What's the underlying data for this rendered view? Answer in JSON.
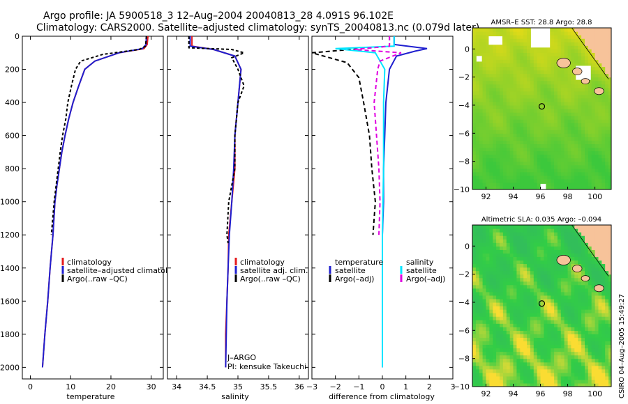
{
  "figure": {
    "title_line1": "Argo profile: JA 5900518_3 12–Aug–2004 20040813_28 4.091S 96.102E",
    "title_line2": "Climatology: CARS2000. Satellite–adjusted climatology: synTS_20040813.nc (0.079d later)",
    "side_note": "CSIRO 04–Aug–2005 15:49:27"
  },
  "colors": {
    "climatology": "#e41a1c",
    "satellite": "#1f1fcf",
    "argo": "#000000",
    "salinity_clim": "#00e5ff",
    "salinity_argo": "#e000e0",
    "ocean_green": "#39c43a",
    "land": "#f7c39a"
  },
  "chart_data": [
    {
      "id": "temperature",
      "type": "line",
      "xlabel": "temperature",
      "ylabel": "",
      "xlim": [
        -2,
        33
      ],
      "ylim": [
        2070,
        0
      ],
      "y_inverted": true,
      "xticks": [
        0,
        10,
        20,
        30
      ],
      "yticks": [
        0,
        200,
        400,
        600,
        800,
        1000,
        1200,
        1400,
        1600,
        1800,
        2000
      ],
      "legend": [
        "climatology",
        "satellite–adjusted climatology",
        "Argo(..raw –QC)"
      ],
      "series": [
        {
          "name": "climatology",
          "color": "#e41a1c",
          "dash": "",
          "points": [
            [
              29.2,
              0
            ],
            [
              29.0,
              50
            ],
            [
              28.2,
              75
            ],
            [
              22,
              100
            ],
            [
              16,
              150
            ],
            [
              13.5,
              200
            ],
            [
              12.0,
              300
            ],
            [
              10.6,
              400
            ],
            [
              9.5,
              500
            ],
            [
              8.6,
              600
            ],
            [
              7.8,
              700
            ],
            [
              7.2,
              800
            ],
            [
              6.6,
              900
            ],
            [
              6.1,
              1000
            ],
            [
              5.6,
              1200
            ],
            [
              4.9,
              1400
            ],
            [
              4.3,
              1600
            ],
            [
              3.6,
              1800
            ],
            [
              3.0,
              2000
            ]
          ]
        },
        {
          "name": "satellite–adjusted climatology",
          "color": "#1f1fcf",
          "dash": "",
          "points": [
            [
              28.8,
              0
            ],
            [
              28.7,
              50
            ],
            [
              27.8,
              75
            ],
            [
              22,
              100
            ],
            [
              16,
              150
            ],
            [
              13.5,
              200
            ],
            [
              12.0,
              300
            ],
            [
              10.6,
              400
            ],
            [
              9.5,
              500
            ],
            [
              8.6,
              600
            ],
            [
              7.8,
              700
            ],
            [
              7.2,
              800
            ],
            [
              6.6,
              900
            ],
            [
              6.1,
              1000
            ],
            [
              5.6,
              1200
            ],
            [
              4.9,
              1400
            ],
            [
              4.3,
              1600
            ],
            [
              3.6,
              1800
            ],
            [
              3.0,
              2000
            ]
          ]
        },
        {
          "name": "Argo(..raw –QC)",
          "color": "#000000",
          "dash": "4,3",
          "points": [
            [
              28.8,
              0
            ],
            [
              28.6,
              60
            ],
            [
              27,
              80
            ],
            [
              18,
              110
            ],
            [
              12.5,
              150
            ],
            [
              11.2,
              200
            ],
            [
              10.2,
              300
            ],
            [
              9.3,
              400
            ],
            [
              8.8,
              500
            ],
            [
              8.0,
              600
            ],
            [
              7.4,
              700
            ],
            [
              6.9,
              800
            ],
            [
              6.4,
              900
            ],
            [
              5.9,
              1000
            ],
            [
              5.2,
              1200
            ]
          ]
        }
      ]
    },
    {
      "id": "salinity",
      "type": "line",
      "xlabel": "salinity",
      "ylabel": "",
      "xlim": [
        33.85,
        36.15
      ],
      "ylim": [
        2070,
        0
      ],
      "y_inverted": true,
      "xticks": [
        34,
        34.5,
        35,
        35.5,
        36
      ],
      "legend": [
        "climatology",
        "satellite adj. clim.",
        "Argo(..raw –QC)"
      ],
      "annotations": [
        "J–ARGO",
        "PI: kensuke Takeuchi"
      ],
      "series": [
        {
          "name": "climatology",
          "color": "#e41a1c",
          "dash": "",
          "points": [
            [
              34.25,
              0
            ],
            [
              34.25,
              60
            ],
            [
              34.6,
              80
            ],
            [
              34.95,
              120
            ],
            [
              35.05,
              200
            ],
            [
              35.0,
              400
            ],
            [
              34.95,
              600
            ],
            [
              34.95,
              800
            ],
            [
              34.9,
              1000
            ],
            [
              34.85,
              1200
            ],
            [
              34.84,
              1400
            ],
            [
              34.82,
              1600
            ],
            [
              34.8,
              1800
            ],
            [
              34.8,
              2000
            ]
          ]
        },
        {
          "name": "satellite adj. clim.",
          "color": "#1f1fcf",
          "dash": "",
          "points": [
            [
              34.22,
              0
            ],
            [
              34.22,
              60
            ],
            [
              34.6,
              80
            ],
            [
              34.95,
              120
            ],
            [
              35.05,
              200
            ],
            [
              35.0,
              400
            ],
            [
              34.95,
              600
            ],
            [
              34.93,
              800
            ],
            [
              34.9,
              1000
            ],
            [
              34.86,
              1200
            ],
            [
              34.84,
              1400
            ],
            [
              34.82,
              1600
            ],
            [
              34.81,
              1800
            ],
            [
              34.8,
              2000
            ]
          ]
        },
        {
          "name": "Argo(..raw –QC)",
          "color": "#000000",
          "dash": "4,3",
          "points": [
            [
              34.2,
              0
            ],
            [
              34.2,
              70
            ],
            [
              34.9,
              80
            ],
            [
              35.1,
              100
            ],
            [
              34.9,
              130
            ],
            [
              35.0,
              200
            ],
            [
              35.1,
              300
            ],
            [
              35.0,
              400
            ],
            [
              34.95,
              600
            ],
            [
              34.95,
              800
            ],
            [
              34.85,
              1000
            ],
            [
              34.82,
              1200
            ],
            [
              34.84,
              1250
            ]
          ]
        }
      ]
    },
    {
      "id": "difference",
      "type": "line",
      "xlabel": "difference from climatology",
      "ylabel": "",
      "xlim": [
        -3,
        3
      ],
      "ylim": [
        2070,
        0
      ],
      "y_inverted": true,
      "xticks": [
        -3,
        -2,
        -1,
        0,
        1,
        2,
        3
      ],
      "legend": [
        "temperature",
        "satellite",
        "Argo(–adj)",
        "salinity",
        "satellite",
        "Argo(–adj)"
      ],
      "series": [
        {
          "name": "temperature satellite",
          "color": "#1f1fcf",
          "dash": "",
          "points": [
            [
              0.5,
              0
            ],
            [
              0.5,
              50
            ],
            [
              1.9,
              75
            ],
            [
              1.4,
              90
            ],
            [
              0.6,
              120
            ],
            [
              0.3,
              200
            ],
            [
              0.15,
              400
            ],
            [
              0.1,
              600
            ],
            [
              0.05,
              800
            ],
            [
              0.05,
              1000
            ],
            [
              0.0,
              1200
            ],
            [
              0.0,
              2000
            ]
          ]
        },
        {
          "name": "temperature Argo(–adj)",
          "color": "#000000",
          "dash": "6,4",
          "points": [
            [
              0.3,
              0
            ],
            [
              0.3,
              60
            ],
            [
              -3,
              100
            ],
            [
              -1.5,
              160
            ],
            [
              -1.0,
              250
            ],
            [
              -0.8,
              400
            ],
            [
              -0.55,
              600
            ],
            [
              -0.45,
              800
            ],
            [
              -0.3,
              1000
            ],
            [
              -0.4,
              1200
            ]
          ]
        },
        {
          "name": "salinity satellite",
          "color": "#00e5ff",
          "dash": "",
          "points": [
            [
              0.5,
              0
            ],
            [
              0.5,
              60
            ],
            [
              -2.0,
              75
            ],
            [
              -0.3,
              100
            ],
            [
              0.1,
              200
            ],
            [
              0.05,
              400
            ],
            [
              0.05,
              800
            ],
            [
              0.0,
              1200
            ],
            [
              0.0,
              2000
            ]
          ]
        },
        {
          "name": "salinity Argo(–adj)",
          "color": "#e000e0",
          "dash": "6,4",
          "points": [
            [
              0.3,
              0
            ],
            [
              0.3,
              60
            ],
            [
              -1.2,
              80
            ],
            [
              0.8,
              100
            ],
            [
              -0.1,
              150
            ],
            [
              -0.2,
              200
            ],
            [
              -0.35,
              400
            ],
            [
              -0.25,
              600
            ],
            [
              -0.15,
              800
            ],
            [
              -0.1,
              1000
            ],
            [
              -0.15,
              1200
            ]
          ]
        }
      ]
    },
    {
      "id": "sst_map",
      "type": "heatmap",
      "title": "AMSR–E SST: 28.8 Argo: 28.8",
      "xlim": [
        91,
        101.2
      ],
      "ylim": [
        -10,
        1.5
      ],
      "xticks": [
        92,
        94,
        96,
        98,
        100
      ],
      "yticks": [
        -10,
        -8,
        -6,
        -4,
        -2,
        0
      ],
      "marker": {
        "lon": 96.1,
        "lat": -4.09
      }
    },
    {
      "id": "sla_map",
      "type": "heatmap",
      "title": "Altimetric SLA: 0.035 Argo: –0.094",
      "xlim": [
        91,
        101.2
      ],
      "ylim": [
        -10,
        1.5
      ],
      "xticks": [
        92,
        94,
        96,
        98,
        100
      ],
      "yticks": [
        -10,
        -8,
        -6,
        -4,
        -2,
        0
      ],
      "marker": {
        "lon": 96.1,
        "lat": -4.09
      }
    }
  ]
}
